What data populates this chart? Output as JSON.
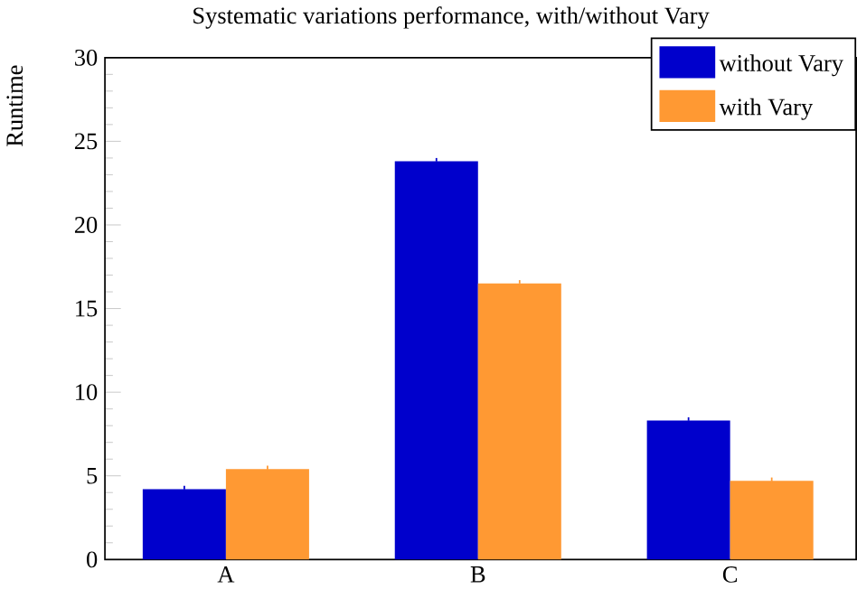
{
  "chart_data": {
    "type": "bar",
    "title": "Systematic variations performance, with/without Vary",
    "ylabel": "Runtime",
    "categories": [
      "A",
      "B",
      "C"
    ],
    "series": [
      {
        "name": "without Vary",
        "color": "#0000cc",
        "values": [
          4.2,
          23.8,
          8.3
        ],
        "errors": [
          0.2,
          0.2,
          0.2
        ]
      },
      {
        "name": "with Vary",
        "color": "#ff9933",
        "values": [
          5.4,
          16.5,
          4.7
        ],
        "errors": [
          0.2,
          0.2,
          0.2
        ]
      }
    ],
    "ylim": [
      0,
      30
    ],
    "yticks": [
      0,
      5,
      10,
      15,
      20,
      25,
      30
    ],
    "grid": false,
    "legend": "top right"
  }
}
